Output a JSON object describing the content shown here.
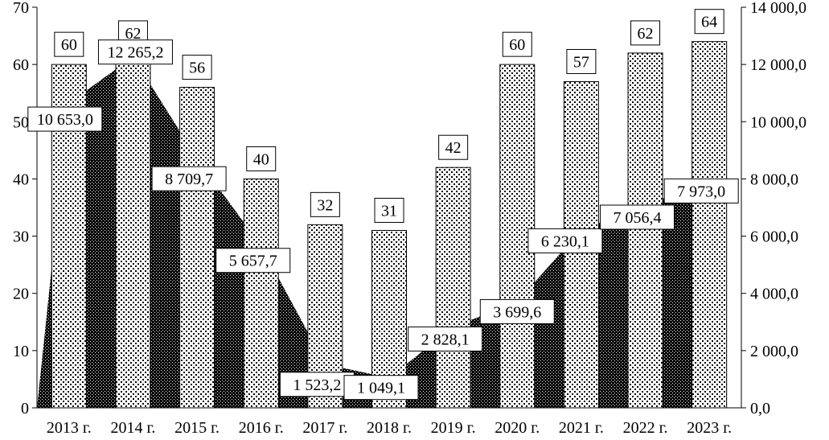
{
  "chart_data": {
    "type": "bar",
    "categories": [
      "2013 г.",
      "2014 г.",
      "2015 г.",
      "2016 г.",
      "2017 г.",
      "2018 г.",
      "2019 г.",
      "2020 г.",
      "2021 г.",
      "2022 г.",
      "2023 г."
    ],
    "series": [
      {
        "axis": "left",
        "render": "bar",
        "pattern": "light-crosshatch",
        "values": [
          60,
          62,
          56,
          40,
          32,
          31,
          42,
          60,
          57,
          62,
          64
        ],
        "labels": [
          "60",
          "62",
          "56",
          "40",
          "32",
          "31",
          "42",
          "60",
          "57",
          "62",
          "64"
        ]
      },
      {
        "axis": "right",
        "render": "area",
        "pattern": "dark-crosshatch",
        "values": [
          10653.0,
          12265.2,
          8709.7,
          5657.7,
          1523.2,
          1049.1,
          2828.1,
          3699.6,
          6230.1,
          7056.4,
          7973.0
        ],
        "labels": [
          "10 653,0",
          "12 265,2",
          "8 709,7",
          "5 657,7",
          "1 523,2",
          "1 049,1",
          "2 828,1",
          "3 699,6",
          "6 230,1",
          "7 056,4",
          "7 973,0"
        ]
      }
    ],
    "y_left": {
      "ylim": [
        0,
        70
      ],
      "ticks": [
        "0",
        "10",
        "20",
        "30",
        "40",
        "50",
        "60",
        "70"
      ]
    },
    "y_right": {
      "ylim": [
        0,
        14000
      ],
      "ticks": [
        "0,0",
        "2 000,0",
        "4 000,0",
        "6 000,0",
        "8 000,0",
        "10 000,0",
        "12 000,0",
        "14 000,0"
      ]
    },
    "title": "",
    "xlabel": "",
    "grid": false,
    "legend": "none"
  }
}
